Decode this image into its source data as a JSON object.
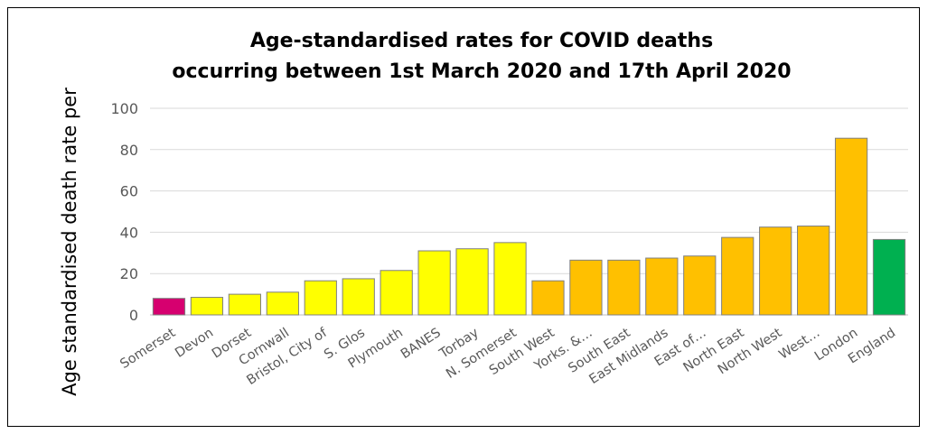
{
  "chart_data": {
    "type": "bar",
    "title_lines": [
      "Age-standardised rates for COVID deaths",
      "occurring between 1st March 2020 and 17th April 2020"
    ],
    "xlabel": "",
    "ylabel": "Age standardised death rate per",
    "ylim": [
      0,
      100
    ],
    "yticks": [
      0,
      20,
      40,
      60,
      80,
      100
    ],
    "grid": true,
    "categories": [
      "Somerset",
      "Devon",
      "Dorset",
      "Cornwall",
      "Bristol, City of",
      "S. Glos",
      "Plymouth",
      "BANES",
      "Torbay",
      "N. Somerset",
      "South West",
      "Yorks. &…",
      "South East",
      "East Midlands",
      "East of…",
      "North East",
      "North West",
      "West…",
      "London",
      "England"
    ],
    "values": [
      8,
      8.5,
      10,
      11,
      16.5,
      17.5,
      21.5,
      31,
      32,
      35,
      16.5,
      26.5,
      26.5,
      27.5,
      28.5,
      37.5,
      42.5,
      43,
      85.5,
      36.5
    ],
    "colors": [
      "#d6006f",
      "#ffff00",
      "#ffff00",
      "#ffff00",
      "#ffff00",
      "#ffff00",
      "#ffff00",
      "#ffff00",
      "#ffff00",
      "#ffff00",
      "#ffc000",
      "#ffc000",
      "#ffc000",
      "#ffc000",
      "#ffc000",
      "#ffc000",
      "#ffc000",
      "#ffc000",
      "#ffc000",
      "#00b050"
    ]
  }
}
